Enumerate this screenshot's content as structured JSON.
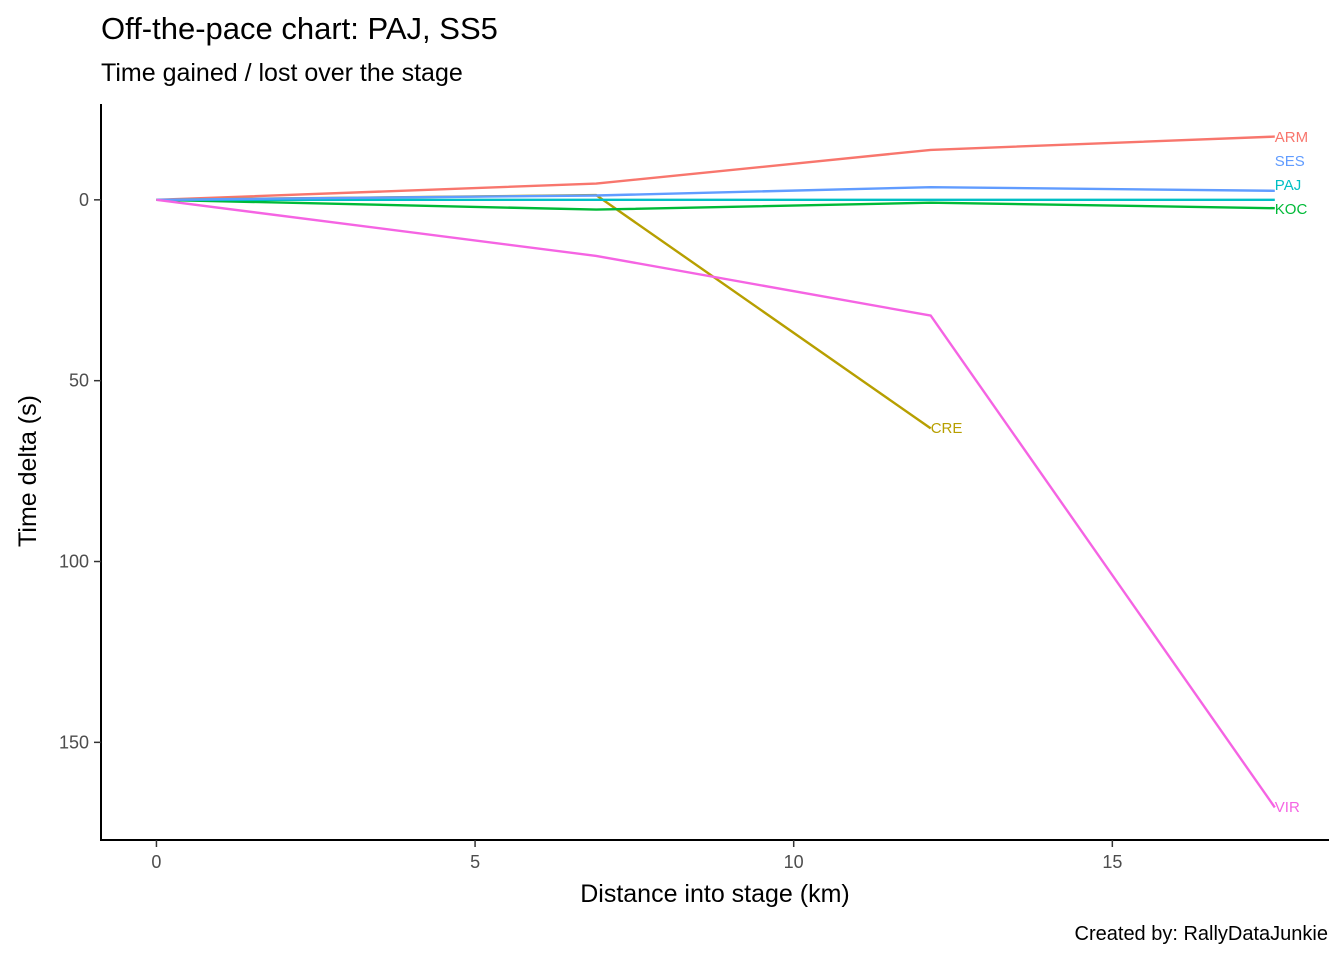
{
  "chart_data": {
    "type": "line",
    "title": "Off-the-pace chart: PAJ, SS5",
    "subtitle": "Time gained / lost over the stage",
    "xlabel": "Distance into stage (km)",
    "ylabel": "Time delta (s)",
    "caption": "Created by: RallyDataJunkie",
    "xlim": [
      -0.87,
      18.4
    ],
    "ylim": [
      -26.5,
      177
    ],
    "y_reversed": true,
    "x_ticks": [
      0,
      5,
      10,
      15
    ],
    "y_ticks": [
      0,
      50,
      100,
      150
    ],
    "grid": false,
    "legend": "none (series labelled at line ends)",
    "series": [
      {
        "name": "ARM",
        "color": "#F8766D",
        "points": [
          [
            0,
            0
          ],
          [
            6.9,
            -4.5
          ],
          [
            12.15,
            -13.8
          ],
          [
            17.55,
            -17.5
          ]
        ]
      },
      {
        "name": "CRE",
        "color": "#B79F00",
        "points": [
          [
            0,
            0
          ],
          [
            6.9,
            -1.3
          ],
          [
            12.15,
            63.2
          ]
        ]
      },
      {
        "name": "KOC",
        "color": "#00BA38",
        "points": [
          [
            0,
            0
          ],
          [
            6.9,
            2.7
          ],
          [
            12.15,
            0.8
          ],
          [
            17.55,
            2.3
          ]
        ]
      },
      {
        "name": "PAJ",
        "color": "#00BFC4",
        "points": [
          [
            0,
            0
          ],
          [
            6.9,
            0
          ],
          [
            12.15,
            0
          ],
          [
            17.55,
            0
          ]
        ]
      },
      {
        "name": "SES",
        "color": "#619CFF",
        "points": [
          [
            0,
            0
          ],
          [
            6.9,
            -1.2
          ],
          [
            12.15,
            -3.5
          ],
          [
            17.55,
            -2.5
          ]
        ]
      },
      {
        "name": "VIR",
        "color": "#F564E3",
        "points": [
          [
            0,
            0
          ],
          [
            6.9,
            15.5
          ],
          [
            12.15,
            32
          ],
          [
            17.55,
            168
          ]
        ]
      }
    ],
    "end_labels": [
      {
        "name": "ARM",
        "x": 17.55,
        "y": -17.3
      },
      {
        "name": "SES",
        "x": 17.55,
        "y": -10.6
      },
      {
        "name": "PAJ",
        "x": 17.55,
        "y": -4.0
      },
      {
        "name": "KOC",
        "x": 17.55,
        "y": 2.7
      },
      {
        "name": "CRE",
        "x": 12.15,
        "y": 63.2
      },
      {
        "name": "VIR",
        "x": 17.55,
        "y": 168
      }
    ]
  }
}
